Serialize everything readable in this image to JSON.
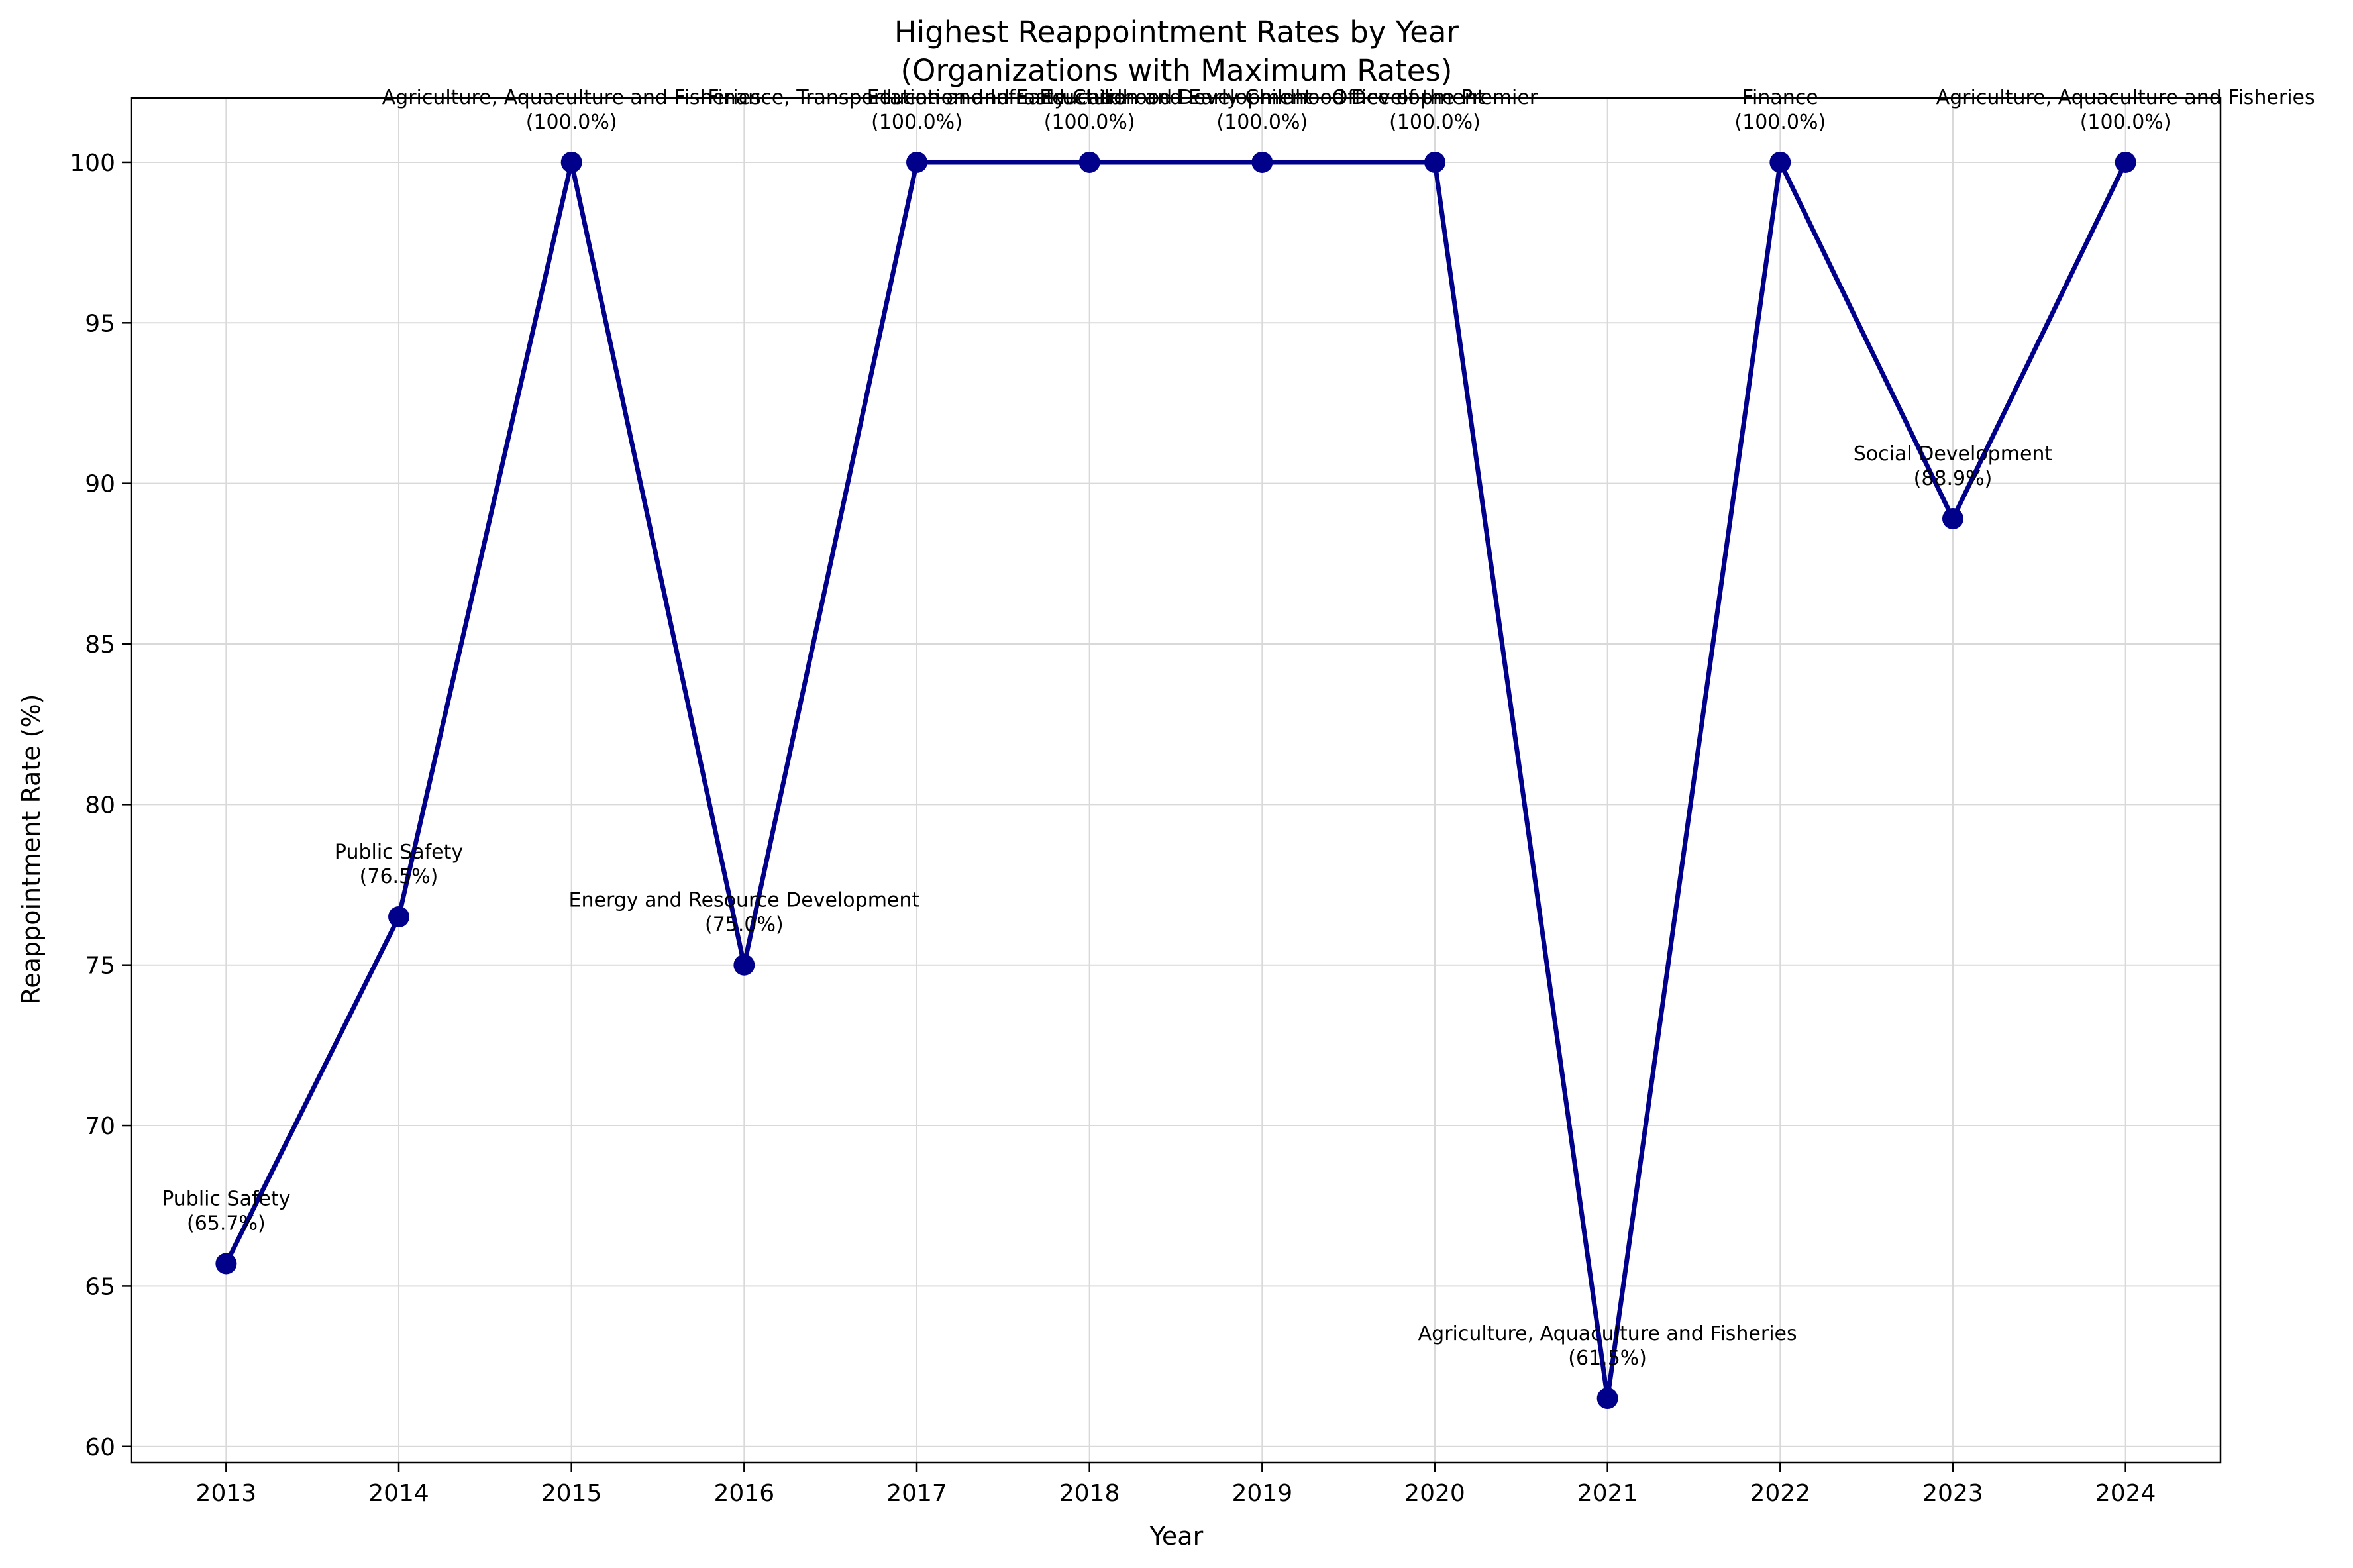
{
  "chart_data": {
    "type": "line",
    "title": "Highest Reappointment Rates by Year",
    "subtitle": "(Organizations with Maximum Rates)",
    "xlabel": "Year",
    "ylabel": "Reappointment Rate (%)",
    "ylim": [
      59.5,
      102
    ],
    "xlim": [
      2012.45,
      2024.55
    ],
    "grid": true,
    "line_color": "#00008b",
    "x": [
      2013,
      2014,
      2015,
      2016,
      2017,
      2018,
      2019,
      2020,
      2021,
      2022,
      2023,
      2024
    ],
    "xticks": [
      "2013",
      "2014",
      "2015",
      "2016",
      "2017",
      "2018",
      "2019",
      "2020",
      "2021",
      "2022",
      "2023",
      "2024"
    ],
    "yticks": [
      60,
      65,
      70,
      75,
      80,
      85,
      90,
      95,
      100
    ],
    "ytick_labels": [
      "60",
      "65",
      "70",
      "75",
      "80",
      "85",
      "90",
      "95",
      "100"
    ],
    "series": [
      {
        "values": [
          65.7,
          76.5,
          100.0,
          75.0,
          100.0,
          100.0,
          100.0,
          100.0,
          61.5,
          100.0,
          88.9,
          100.0
        ],
        "annotations": [
          {
            "org": "Public Safety",
            "rate": "(65.7%)"
          },
          {
            "org": "Public Safety",
            "rate": "(76.5%)"
          },
          {
            "org": "Agriculture, Aquaculture and Fisheries",
            "rate": "(100.0%)"
          },
          {
            "org": "Energy and Resource Development",
            "rate": "(75.0%)"
          },
          {
            "org": "Finance, Transportation and Infrastructure",
            "rate": "(100.0%)"
          },
          {
            "org": "Education and Early Childhood Development",
            "rate": "(100.0%)"
          },
          {
            "org": "Education and Early Childhood Development",
            "rate": "(100.0%)"
          },
          {
            "org": "Office of the Premier",
            "rate": "(100.0%)"
          },
          {
            "org": "Agriculture, Aquaculture and Fisheries",
            "rate": "(61.5%)"
          },
          {
            "org": "Finance",
            "rate": "(100.0%)"
          },
          {
            "org": "Social Development",
            "rate": "(88.9%)"
          },
          {
            "org": "Agriculture, Aquaculture and Fisheries",
            "rate": "(100.0%)"
          }
        ]
      }
    ]
  }
}
